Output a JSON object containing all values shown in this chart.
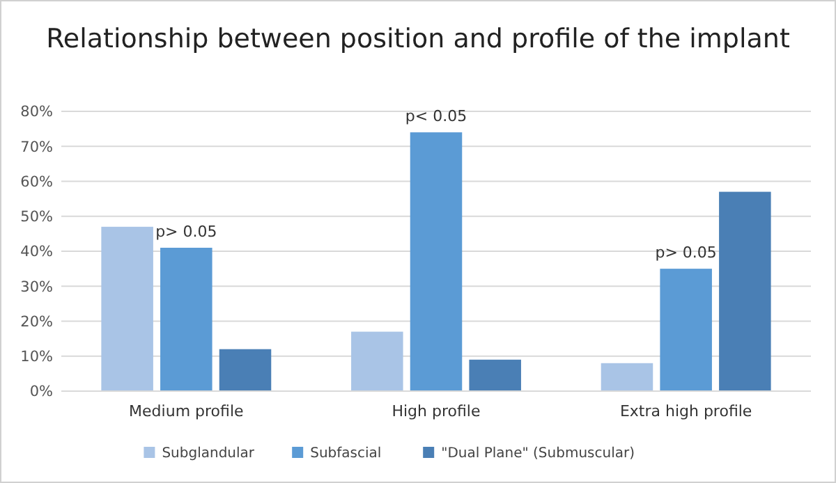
{
  "chart_data": {
    "type": "bar",
    "title": "Relationship between position and profile of the implant",
    "categories": [
      "Medium profile",
      "High profile",
      "Extra high profile"
    ],
    "series": [
      {
        "name": "Subglandular",
        "color": "#a9c4e6",
        "values": [
          47,
          17,
          8
        ]
      },
      {
        "name": "Subfascial",
        "color": "#5b9bd5",
        "values": [
          41,
          74,
          35
        ]
      },
      {
        "name": "\"Dual Plane\" (Submuscular)",
        "color": "#4a7fb5",
        "values": [
          12,
          9,
          57
        ]
      }
    ],
    "ylim": [
      0,
      80
    ],
    "yticks": [
      {
        "value": 0,
        "label": "0%"
      },
      {
        "value": 10,
        "label": "10%"
      },
      {
        "value": 20,
        "label": "20%"
      },
      {
        "value": 30,
        "label": "30%"
      },
      {
        "value": 40,
        "label": "40%"
      },
      {
        "value": 50,
        "label": "50%"
      },
      {
        "value": 60,
        "label": "60%"
      },
      {
        "value": 70,
        "label": "70%"
      },
      {
        "value": 80,
        "label": "80%"
      }
    ],
    "grid": "y",
    "legend": "bottom",
    "annotations": [
      {
        "text": "p> 0.05",
        "x": "Medium profile",
        "y": 41
      },
      {
        "text": "p< 0.05",
        "x": "High profile",
        "y": 74
      },
      {
        "text": "p> 0.05",
        "x": "Extra high profile",
        "y": 35
      }
    ]
  }
}
